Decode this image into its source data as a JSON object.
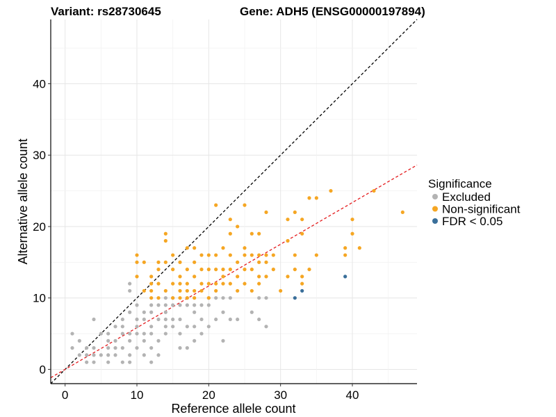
{
  "chart_data": {
    "type": "scatter",
    "title_left": "Variant: rs28730645",
    "title_right": "Gene: ADH5 (ENSG00000197894)",
    "xlabel": "Reference allele count",
    "ylabel": "Alternative allele count",
    "xlim": [
      -2,
      49
    ],
    "ylim": [
      -2,
      49
    ],
    "x_ticks": [
      0,
      10,
      20,
      30,
      40
    ],
    "y_ticks": [
      0,
      10,
      20,
      30,
      40
    ],
    "grid": true,
    "legend": {
      "title": "Significance",
      "placement": "right",
      "entries": [
        {
          "label": "Excluded",
          "color": "#b3b3b3"
        },
        {
          "label": "Non-significant",
          "color": "#f5a623"
        },
        {
          "label": "FDR < 0.05",
          "color": "#3a6f9a"
        }
      ]
    },
    "reference_lines": [
      {
        "name": "identity",
        "slope": 1,
        "intercept": 0,
        "color": "#000000",
        "style": "dashed"
      },
      {
        "name": "fit",
        "slope": 0.584,
        "intercept": 0,
        "color": "#e41a1c",
        "style": "dashed"
      }
    ],
    "series": [
      {
        "name": "Excluded",
        "color": "#b3b3b3",
        "points": [
          [
            1,
            5
          ],
          [
            1,
            3
          ],
          [
            2,
            4
          ],
          [
            2,
            2
          ],
          [
            3,
            2
          ],
          [
            3,
            1
          ],
          [
            3,
            3
          ],
          [
            4,
            1
          ],
          [
            4,
            2
          ],
          [
            4,
            7
          ],
          [
            4,
            3
          ],
          [
            5,
            2
          ],
          [
            5,
            5
          ],
          [
            6,
            2
          ],
          [
            6,
            3
          ],
          [
            6,
            4
          ],
          [
            6,
            5
          ],
          [
            6,
            1
          ],
          [
            7,
            3
          ],
          [
            7,
            4
          ],
          [
            7,
            2
          ],
          [
            7,
            6
          ],
          [
            8,
            1
          ],
          [
            8,
            3
          ],
          [
            8,
            5
          ],
          [
            8,
            7
          ],
          [
            8,
            6
          ],
          [
            9,
            2
          ],
          [
            9,
            4
          ],
          [
            9,
            5
          ],
          [
            9,
            12
          ],
          [
            9,
            8
          ],
          [
            9,
            11
          ],
          [
            9,
            1
          ],
          [
            10,
            6
          ],
          [
            10,
            3
          ],
          [
            10,
            7
          ],
          [
            10,
            5
          ],
          [
            10,
            9
          ],
          [
            11,
            4
          ],
          [
            11,
            5
          ],
          [
            11,
            8
          ],
          [
            11,
            2
          ],
          [
            11,
            7
          ],
          [
            12,
            3
          ],
          [
            12,
            5
          ],
          [
            12,
            6
          ],
          [
            12,
            9
          ],
          [
            12,
            1
          ],
          [
            12,
            8
          ],
          [
            13,
            7
          ],
          [
            13,
            4
          ],
          [
            13,
            9
          ],
          [
            13,
            2
          ],
          [
            14,
            5
          ],
          [
            14,
            6
          ],
          [
            14,
            8
          ],
          [
            14,
            10
          ],
          [
            14,
            7
          ],
          [
            14,
            9
          ],
          [
            15,
            6
          ],
          [
            15,
            7
          ],
          [
            15,
            9
          ],
          [
            15,
            10
          ],
          [
            16,
            3
          ],
          [
            16,
            5
          ],
          [
            16,
            7
          ],
          [
            16,
            9
          ],
          [
            17,
            3
          ],
          [
            17,
            6
          ],
          [
            17,
            9
          ],
          [
            17,
            10
          ],
          [
            18,
            4
          ],
          [
            18,
            6
          ],
          [
            18,
            8
          ],
          [
            18,
            9
          ],
          [
            19,
            5
          ],
          [
            19,
            7
          ],
          [
            19,
            9
          ],
          [
            20,
            6
          ],
          [
            20,
            9
          ],
          [
            20,
            10
          ],
          [
            21,
            7
          ],
          [
            21,
            10
          ],
          [
            22,
            8
          ],
          [
            22,
            10
          ],
          [
            22,
            4
          ],
          [
            23,
            10
          ],
          [
            23,
            7
          ],
          [
            24,
            7
          ],
          [
            26,
            8
          ],
          [
            27,
            7
          ],
          [
            27,
            10
          ],
          [
            28,
            6
          ],
          [
            28,
            10
          ]
        ]
      },
      {
        "name": "Non-significant",
        "color": "#f5a623",
        "points": [
          [
            10,
            16
          ],
          [
            10,
            15
          ],
          [
            10,
            13
          ],
          [
            11,
            11
          ],
          [
            11,
            15
          ],
          [
            12,
            13
          ],
          [
            12,
            12
          ],
          [
            12,
            10
          ],
          [
            12,
            11
          ],
          [
            13,
            14
          ],
          [
            13,
            15
          ],
          [
            13,
            10
          ],
          [
            13,
            12
          ],
          [
            14,
            19
          ],
          [
            14,
            18
          ],
          [
            14,
            15
          ],
          [
            14,
            11
          ],
          [
            15,
            10
          ],
          [
            15,
            12
          ],
          [
            15,
            14
          ],
          [
            15,
            16
          ],
          [
            16,
            10
          ],
          [
            16,
            11
          ],
          [
            16,
            12
          ],
          [
            16,
            13
          ],
          [
            16,
            15
          ],
          [
            17,
            17
          ],
          [
            17,
            14
          ],
          [
            17,
            12
          ],
          [
            17,
            11
          ],
          [
            17,
            10
          ],
          [
            18,
            10
          ],
          [
            18,
            11
          ],
          [
            18,
            13
          ],
          [
            18,
            15
          ],
          [
            18,
            17
          ],
          [
            19,
            11
          ],
          [
            19,
            12
          ],
          [
            19,
            14
          ],
          [
            19,
            16
          ],
          [
            20,
            12
          ],
          [
            20,
            14
          ],
          [
            20,
            16
          ],
          [
            20,
            10
          ],
          [
            21,
            23
          ],
          [
            21,
            16
          ],
          [
            21,
            14
          ],
          [
            21,
            12
          ],
          [
            21,
            11
          ],
          [
            22,
            17
          ],
          [
            22,
            13
          ],
          [
            22,
            12
          ],
          [
            22,
            14
          ],
          [
            23,
            12
          ],
          [
            23,
            14
          ],
          [
            23,
            16
          ],
          [
            23,
            19
          ],
          [
            23,
            21
          ],
          [
            24,
            13
          ],
          [
            24,
            15
          ],
          [
            24,
            20
          ],
          [
            24,
            11
          ],
          [
            25,
            16
          ],
          [
            25,
            14
          ],
          [
            25,
            12
          ],
          [
            25,
            17
          ],
          [
            25,
            23
          ],
          [
            26,
            19
          ],
          [
            26,
            14
          ],
          [
            26,
            16
          ],
          [
            26,
            11
          ],
          [
            27,
            15
          ],
          [
            27,
            16
          ],
          [
            27,
            19
          ],
          [
            27,
            13
          ],
          [
            27,
            12
          ],
          [
            28,
            15
          ],
          [
            28,
            16
          ],
          [
            28,
            22
          ],
          [
            28,
            13
          ],
          [
            29,
            16
          ],
          [
            29,
            14
          ],
          [
            30,
            11
          ],
          [
            31,
            21
          ],
          [
            31,
            18
          ],
          [
            31,
            13
          ],
          [
            32,
            16
          ],
          [
            32,
            14
          ],
          [
            32,
            22
          ],
          [
            33,
            21
          ],
          [
            33,
            13
          ],
          [
            33,
            12
          ],
          [
            33,
            19
          ],
          [
            34,
            24
          ],
          [
            34,
            14
          ],
          [
            35,
            16
          ],
          [
            35,
            24
          ],
          [
            37,
            25
          ],
          [
            39,
            17
          ],
          [
            39,
            16
          ],
          [
            40,
            21
          ],
          [
            40,
            19
          ],
          [
            41,
            17
          ],
          [
            43,
            25
          ],
          [
            47,
            22
          ]
        ]
      },
      {
        "name": "FDR < 0.05",
        "color": "#3a6f9a",
        "points": [
          [
            32,
            10
          ],
          [
            33,
            11
          ],
          [
            39,
            13
          ]
        ]
      }
    ]
  }
}
